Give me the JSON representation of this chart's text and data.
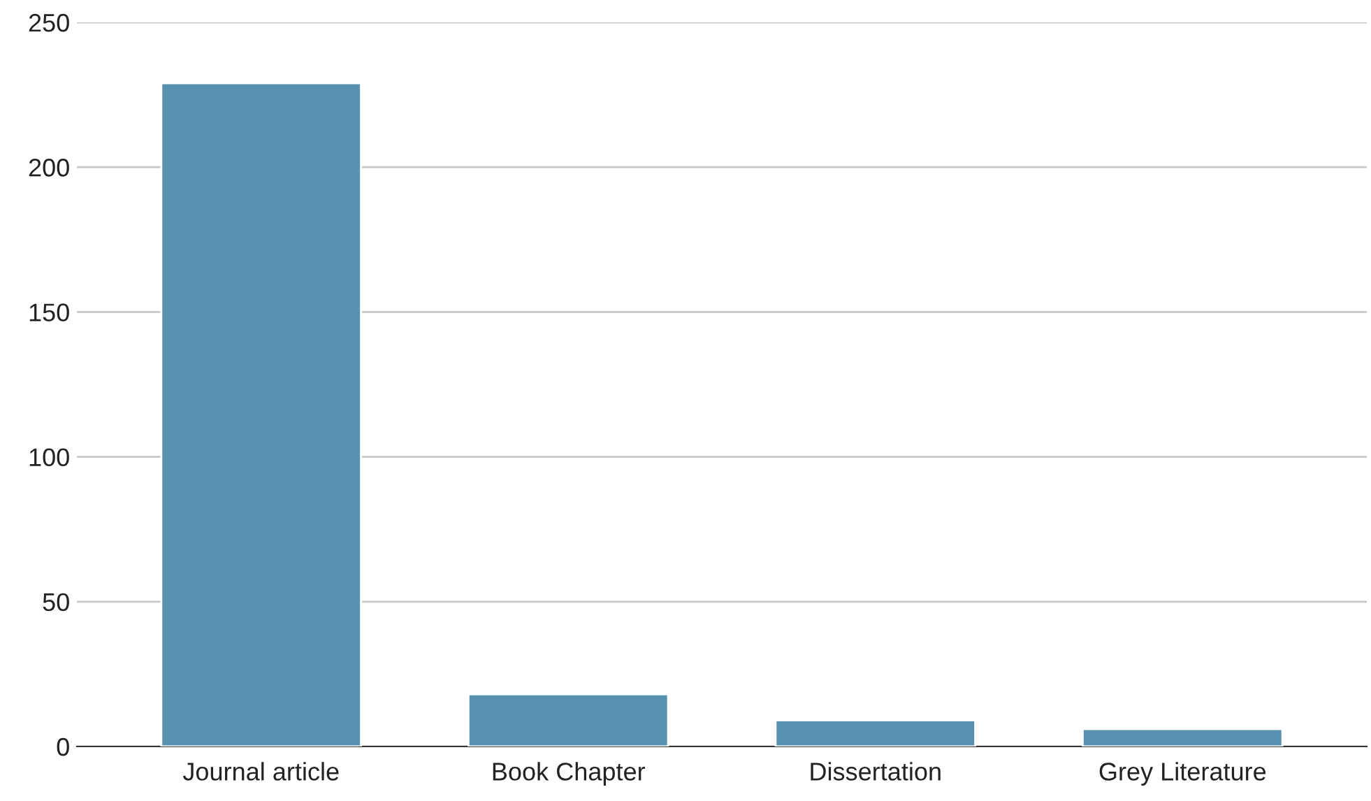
{
  "chart_data": {
    "type": "bar",
    "categories": [
      "Journal article",
      "Book Chapter",
      "Dissertation",
      "Grey Literature"
    ],
    "values": [
      229,
      18,
      9,
      6
    ],
    "color": "#5891b0",
    "ylim": [
      0,
      250
    ],
    "yticks": [
      0,
      50,
      100,
      150,
      200,
      250
    ],
    "grid": "y",
    "legend": false
  }
}
